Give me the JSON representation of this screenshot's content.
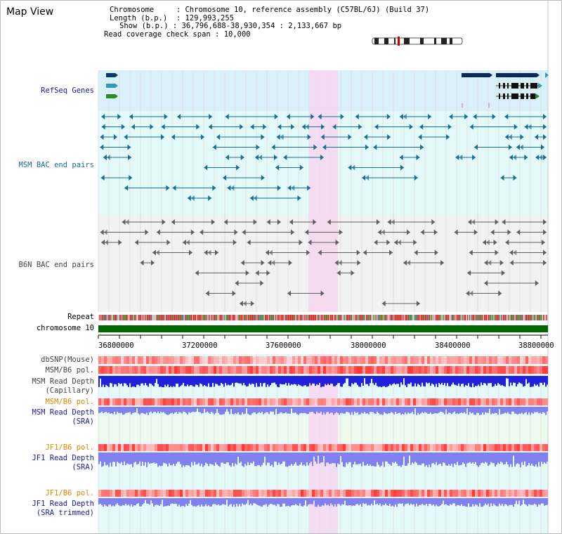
{
  "title": "Map View",
  "header": {
    "chromosome_key": "Chromosome",
    "chromosome_value": "Chromosome 10, reference assembly (C57BL/6J) (Build 37)",
    "length_key": "Length (b.p.)",
    "length_value": "129,993,255",
    "show_key": "Show (b.p.)",
    "show_value": "36,796,688-38,930,354 : 2,133,667 bp",
    "coverage_key": "Read coverage check span",
    "coverage_value": "10,000"
  },
  "track_labels": {
    "refseq": "RefSeq Genes",
    "msm_bac": "MSM BAC end pairs",
    "b6n_bac": "B6N BAC end pairs",
    "repeat": "Repeat",
    "chromosome": "chromosome 10",
    "dbsnp": "dbSNP(Mouse)",
    "msm_b6_pol": "MSM/B6 pol.",
    "msm_depth_cap_1": "MSM Read Depth",
    "msm_depth_cap_2": "(Capillary)",
    "msm_b6_pol_2": "MSM/B6 pol.",
    "msm_depth_sra_1": "MSM Read Depth",
    "msm_depth_sra_2": "(SRA)",
    "jf1_b6_pol": "JF1/B6 pol.",
    "jf1_depth_sra_1": "JF1 Read Depth",
    "jf1_depth_sra_2": "(SRA)",
    "jf1_b6_pol_2": "JF1/B6 pol.",
    "jf1_depth_trim_1": "JF1 Read Depth",
    "jf1_depth_trim_2": "(SRA trimmed)"
  },
  "axis": {
    "ticks": [
      "36800000",
      "37200000",
      "37600000",
      "38000000",
      "38400000",
      "38800000"
    ]
  },
  "colors": {
    "refseq_bg": "#d8f0fa",
    "cyan_bg": "#e4fafa",
    "gray_bg": "#f2f2f2",
    "highlight": "#f7d6f0",
    "msm_bac": "#1a6e8e",
    "b6n_bac": "#606060",
    "chromosome_bar": "#006600",
    "depth_dark": "#2222dd",
    "depth_light": "#8080ee",
    "label_gray": "#444444",
    "label_blue": "#1a1aa0",
    "label_teal": "#1a6e8e",
    "label_orange": "#d88a00"
  }
}
